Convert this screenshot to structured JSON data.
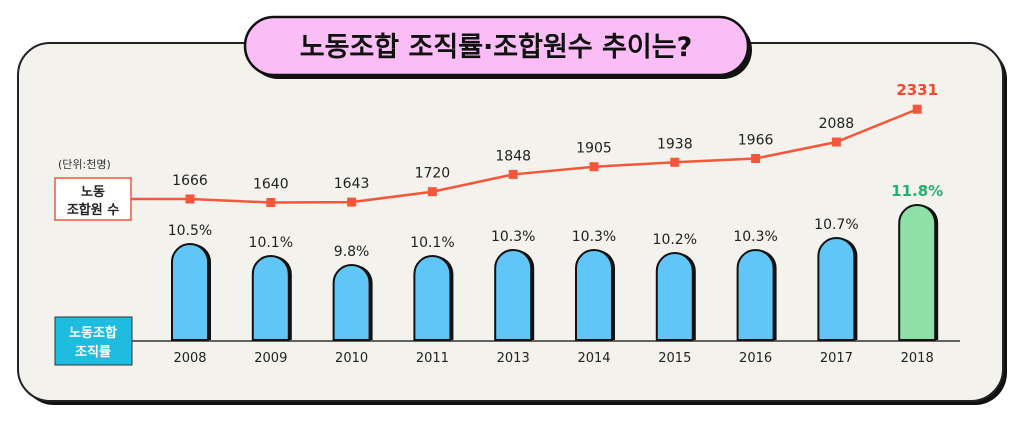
{
  "title": "노동조합 조직률·조합원수 추이는?",
  "unit_label": "(단위:천명)",
  "legend": {
    "members": "노동조합원 수",
    "members_lines": [
      "노동",
      "조합원 수"
    ],
    "rate": "노동조합 조직률",
    "rate_lines": [
      "노동조합",
      "조직률"
    ]
  },
  "colors": {
    "panel_bg": "#f3f2ec",
    "title_bg": "#fbbdf5",
    "bar": "#5fc6f7",
    "bar_highlight": "#8fe0a8",
    "highlight_text": "#26b070",
    "line": "#f5573c",
    "line_highlight_text": "#f04a30",
    "rate_legend_bg": "#1ebde0"
  },
  "chart_data": {
    "type": "bar+line",
    "title": "노동조합 조직률·조합원수 추이는?",
    "categories": [
      "2008",
      "2009",
      "2010",
      "2011",
      "2013",
      "2014",
      "2015",
      "2016",
      "2017",
      "2018"
    ],
    "series": [
      {
        "name": "노동조합원 수",
        "type": "line",
        "unit": "천명",
        "values": [
          1666,
          1640,
          1643,
          1720,
          1848,
          1905,
          1938,
          1966,
          2088,
          2331
        ],
        "labels": [
          "1666",
          "1640",
          "1643",
          "1720",
          "1848",
          "1905",
          "1938",
          "1966",
          "2088",
          "2331"
        ]
      },
      {
        "name": "노동조합 조직률",
        "type": "bar",
        "unit": "%",
        "values": [
          10.5,
          10.1,
          9.8,
          10.1,
          10.3,
          10.3,
          10.2,
          10.3,
          10.7,
          11.8
        ],
        "labels": [
          "10.5%",
          "10.1%",
          "9.8%",
          "10.1%",
          "10.3%",
          "10.3%",
          "10.2%",
          "10.3%",
          "10.7%",
          "11.8%"
        ]
      }
    ],
    "highlight_index": 9,
    "grid": false
  }
}
